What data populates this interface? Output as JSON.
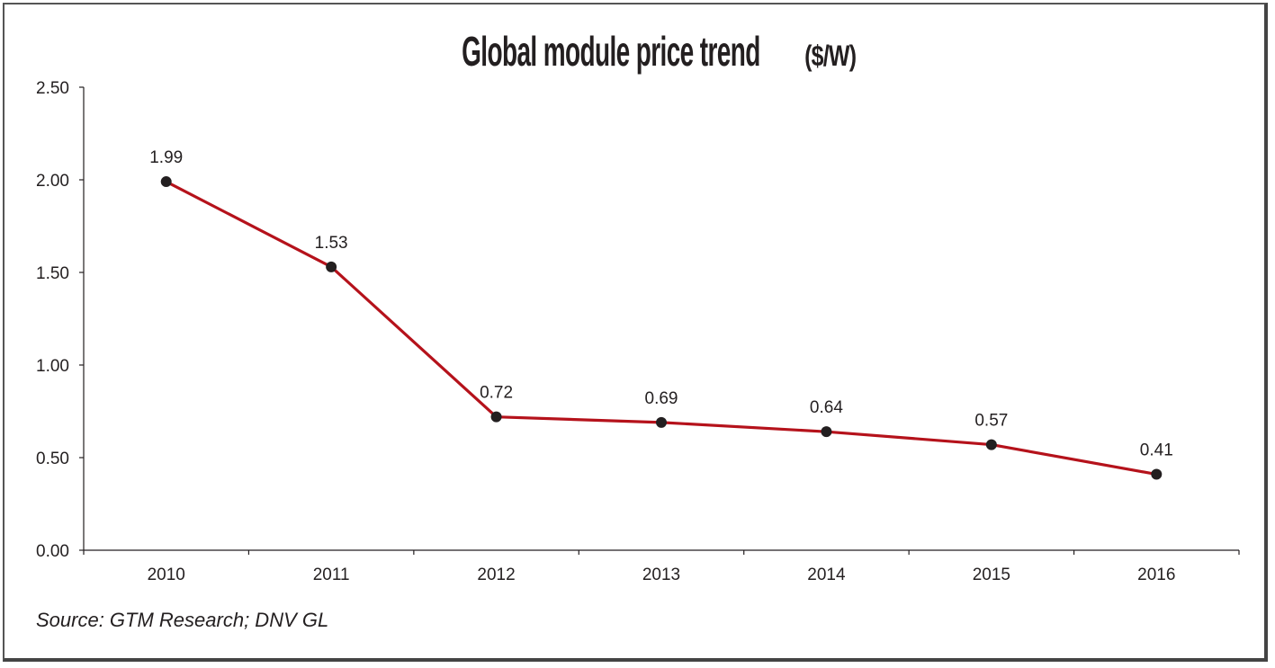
{
  "chart_data": {
    "type": "line",
    "title": "Global module price trend",
    "title_unit": "($/W)",
    "xlabel": "",
    "ylabel": "",
    "categories": [
      "2010",
      "2011",
      "2012",
      "2013",
      "2014",
      "2015",
      "2016"
    ],
    "series": [
      {
        "name": "Global module price ($/W)",
        "values": [
          1.99,
          1.53,
          0.72,
          0.69,
          0.64,
          0.57,
          0.41
        ],
        "data_labels": [
          "1.99",
          "1.53",
          "0.72",
          "0.69",
          "0.64",
          "0.57",
          "0.41"
        ],
        "line_color": "#b5121b",
        "marker_color": "#231f20"
      }
    ],
    "ylim": [
      0,
      2.5
    ],
    "yticks": [
      0,
      0.5,
      1.0,
      1.5,
      2.0,
      2.5
    ],
    "ytick_labels": [
      "0.00",
      "0.50",
      "1.00",
      "1.50",
      "2.00",
      "2.50"
    ],
    "grid": false,
    "legend": "none",
    "source": "Source: GTM Research; DNV GL"
  }
}
